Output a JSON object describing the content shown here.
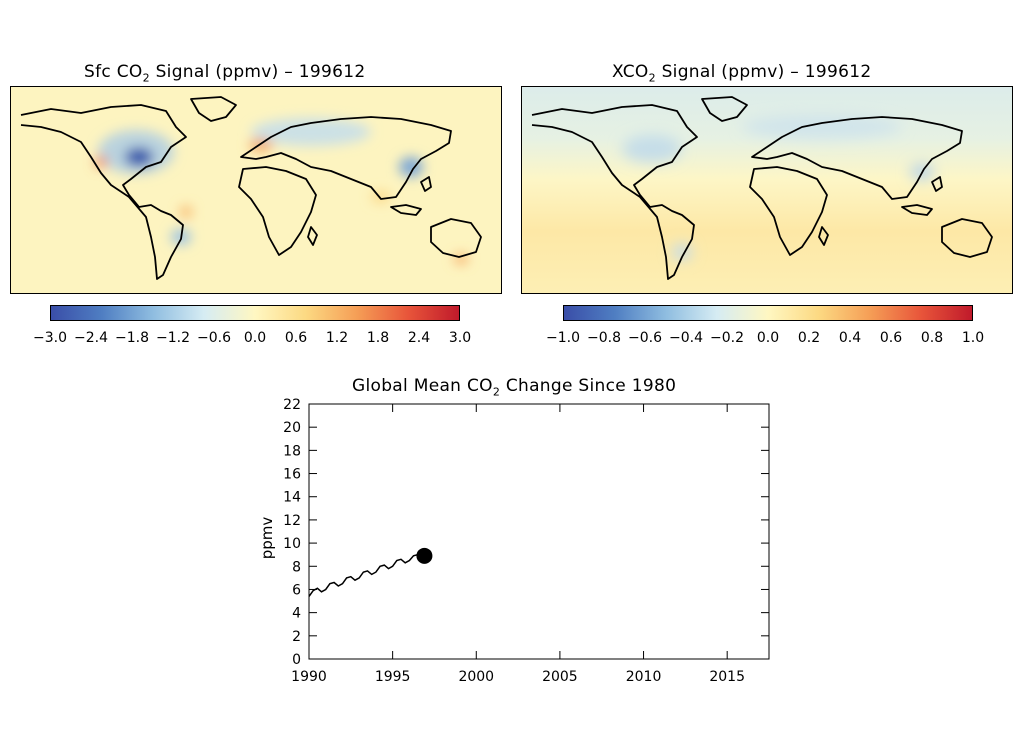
{
  "maps": [
    {
      "title_prefix": "Sfc CO",
      "title_sub": "2",
      "title_suffix": " Signal (ppmv) – 199612",
      "colorbar_ticks": [
        "−3.0",
        "−2.4",
        "−1.8",
        "−1.2",
        "−0.6",
        "0.0",
        "0.6",
        "1.2",
        "1.8",
        "2.4",
        "3.0"
      ],
      "colorbar_range": [
        -3.0,
        3.0
      ]
    },
    {
      "title_prefix": "XCO",
      "title_sub": "2",
      "title_suffix": " Signal (ppmv) – 199612",
      "colorbar_ticks": [
        "−1.0",
        "−0.8",
        "−0.6",
        "−0.4",
        "−0.2",
        "0.0",
        "0.2",
        "0.4",
        "0.6",
        "0.8",
        "1.0"
      ],
      "colorbar_range": [
        -1.0,
        1.0
      ]
    }
  ],
  "colorbar_colors": [
    "#3a4ea8",
    "#4f7ec2",
    "#8fbde0",
    "#d6ecf3",
    "#fff7c2",
    "#fcd982",
    "#f59e56",
    "#e8553a",
    "#c01a2b"
  ],
  "chart_data": {
    "type": "line",
    "title_prefix": "Global Mean CO",
    "title_sub": "2",
    "title_suffix": " Change Since 1980",
    "xlabel": "",
    "ylabel": "ppmv",
    "xlim": [
      1990,
      2017.5
    ],
    "ylim": [
      0,
      22
    ],
    "x_ticks": [
      1990,
      1995,
      2000,
      2005,
      2010,
      2015
    ],
    "y_ticks": [
      0,
      2,
      4,
      6,
      8,
      10,
      12,
      14,
      16,
      18,
      20,
      22
    ],
    "series": [
      {
        "x": [
          1990.0,
          1990.25,
          1990.5,
          1990.75,
          1991.0,
          1991.25,
          1991.5,
          1991.75,
          1992.0,
          1992.25,
          1992.5,
          1992.75,
          1993.0,
          1993.25,
          1993.5,
          1993.75,
          1994.0,
          1994.25,
          1994.5,
          1994.75,
          1995.0,
          1995.25,
          1995.5,
          1995.75,
          1996.0,
          1996.25,
          1996.5,
          1996.75
        ],
        "values": [
          5.4,
          5.9,
          6.1,
          5.8,
          6.0,
          6.5,
          6.6,
          6.3,
          6.5,
          7.0,
          7.1,
          6.8,
          7.0,
          7.5,
          7.6,
          7.3,
          7.5,
          8.0,
          8.1,
          7.8,
          8.0,
          8.5,
          8.6,
          8.3,
          8.5,
          8.9,
          9.0,
          8.8
        ]
      }
    ],
    "current_point": {
      "x": 1996.9,
      "y": 8.9
    }
  }
}
